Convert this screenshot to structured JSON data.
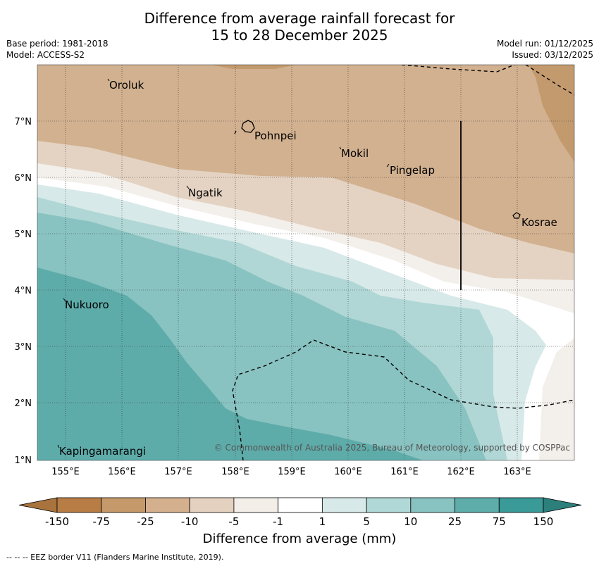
{
  "title": {
    "line1": "Difference from average rainfall forecast for",
    "line2": "15 to 28 December 2025"
  },
  "meta": {
    "base_period": "Base period: 1981-2018",
    "model": "Model: ACCESS-S2",
    "model_run": "Model run: 01/12/2025",
    "issued": "Issued: 03/12/2025"
  },
  "map": {
    "lat_labels": [
      "7°N",
      "6°N",
      "5°N",
      "4°N",
      "3°N",
      "2°N",
      "1°N"
    ],
    "lon_labels": [
      "155°E",
      "156°E",
      "157°E",
      "158°E",
      "159°E",
      "160°E",
      "161°E",
      "162°E",
      "163°E"
    ],
    "places": [
      {
        "name": "Oroluk"
      },
      {
        "name": "Pohnpei"
      },
      {
        "name": "Mokil"
      },
      {
        "name": "Pingelap"
      },
      {
        "name": "Ngatik"
      },
      {
        "name": "Kosrae"
      },
      {
        "name": "Nukuoro"
      },
      {
        "name": "Kapingamarangi"
      }
    ],
    "copyright": "© Commonwealth of Australia 2025, Bureau of Meteorology, supported by COSPPac"
  },
  "colorbar": {
    "title": "Difference from average (mm)",
    "tick_labels": [
      "-150",
      "-75",
      "-25",
      "-10",
      "-5",
      "-1",
      "1",
      "5",
      "10",
      "25",
      "75",
      "150"
    ],
    "colors": [
      "#a8733c",
      "#b77d45",
      "#c6996a",
      "#d5b08e",
      "#e5d1bf",
      "#f3eee8",
      "#ffffff",
      "#d7eae9",
      "#b0d8d6",
      "#88c3c1",
      "#5eadab",
      "#3a9a97",
      "#2d7f7b"
    ]
  },
  "footer": "--  --  -- EEZ border V11 (Flanders Marine Institute, 2019)."
}
